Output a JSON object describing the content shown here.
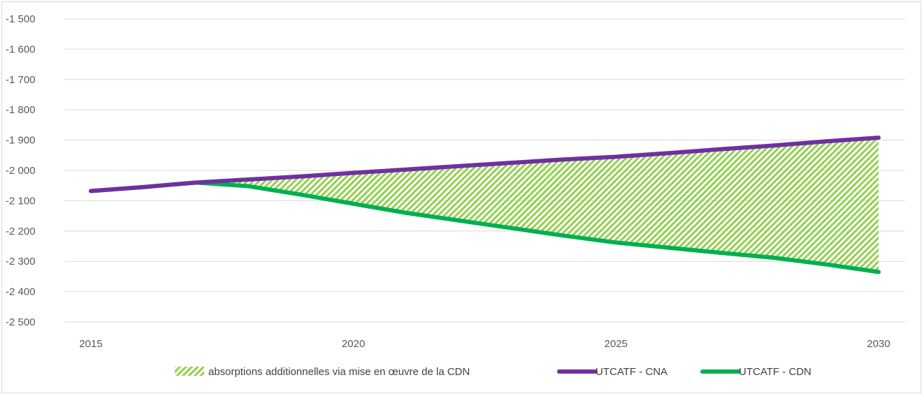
{
  "chart_data": {
    "type": "line",
    "x_ticks": [
      "2015",
      "2020",
      "2025",
      "2030"
    ],
    "y_ticks": [
      "-1 500",
      "-1 600",
      "-1 700",
      "-1 800",
      "-1 900",
      "-2 000",
      "-2 100",
      "-2 200",
      "-2 300",
      "-2 400",
      "-2 500"
    ],
    "ylim": [
      -2500,
      -1500
    ],
    "xlim": [
      2015,
      2030
    ],
    "grid": true,
    "legend_position": "bottom",
    "colors": {
      "cna": "#7030a0",
      "cdn": "#00b050",
      "hatch": "#92d050"
    },
    "area": {
      "name": "absorptions additionnelles via mise en œuvre de la CDN",
      "between": [
        "UTCATF - CNA",
        "UTCATF - CDN"
      ]
    },
    "series": [
      {
        "name": "UTCATF - CNA",
        "x": [
          2015,
          2016,
          2017,
          2018,
          2019,
          2020,
          2021,
          2022,
          2023,
          2024,
          2025,
          2026,
          2027,
          2028,
          2029,
          2030
        ],
        "values": [
          -2068,
          -2055,
          -2040,
          -2030,
          -2020,
          -2008,
          -1997,
          -1986,
          -1975,
          -1964,
          -1955,
          -1943,
          -1930,
          -1918,
          -1904,
          -1892
        ]
      },
      {
        "name": "UTCATF - CDN",
        "x": [
          2015,
          2016,
          2017,
          2018,
          2019,
          2020,
          2021,
          2022,
          2023,
          2024,
          2025,
          2026,
          2027,
          2028,
          2029,
          2030
        ],
        "values": [
          -2068,
          -2055,
          -2040,
          -2052,
          -2080,
          -2110,
          -2140,
          -2165,
          -2190,
          -2215,
          -2238,
          -2255,
          -2272,
          -2288,
          -2310,
          -2335
        ]
      }
    ]
  }
}
